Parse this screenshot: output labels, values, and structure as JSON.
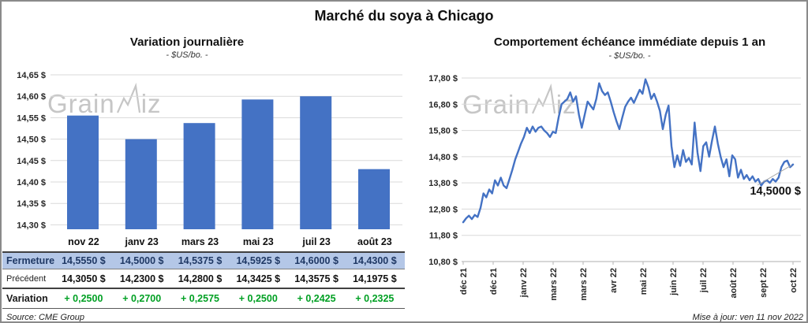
{
  "title": "Marché du soya à Chicago",
  "watermark": {
    "part1": "Grain",
    "part2": "iz"
  },
  "footer": {
    "source": "Source: CME Group",
    "updated": "Mise à jour: ven 11 nov 2022"
  },
  "colors": {
    "bar": "#4472c4",
    "line": "#4472c4",
    "close_row_bg": "#b4c7e7",
    "close_row_text": "#1f3864",
    "variation_green": "#00a023",
    "gridline": "#d9d9d9",
    "axis": "#bfbfbf",
    "watermark": "#c6c6c6",
    "annotation_leader": "#a6a6a6"
  },
  "chart_data": [
    {
      "type": "bar",
      "title": "Variation journalière",
      "subtitle": "- $US/bo. -",
      "categories": [
        "nov 22",
        "janv 23",
        "mars 23",
        "mai 23",
        "juil 23",
        "août 23"
      ],
      "values": [
        14.555,
        14.5,
        14.5375,
        14.5925,
        14.6,
        14.43
      ],
      "ylim": [
        14.2875,
        14.675
      ],
      "grid": true,
      "yticks": [
        {
          "v": 14.65,
          "label": "14,65 $"
        },
        {
          "v": 14.6,
          "label": "14,60 $"
        },
        {
          "v": 14.55,
          "label": "14,55 $"
        },
        {
          "v": 14.5,
          "label": "14,50 $"
        },
        {
          "v": 14.45,
          "label": "14,45 $"
        },
        {
          "v": 14.4,
          "label": "14,40 $"
        },
        {
          "v": 14.35,
          "label": "14,35 $"
        },
        {
          "v": 14.3,
          "label": "14,30 $"
        }
      ]
    },
    {
      "type": "line",
      "title": "Comportement échéance immédiate depuis 1 an",
      "subtitle": "- $US/bo. -",
      "x_tick_labels": [
        "déc 21",
        "déc 21",
        "janv 22",
        "mars 22",
        "mars 22",
        "avr 22",
        "mai 22",
        "juin 22",
        "juil 22",
        "août 22",
        "sept 22",
        "oct 22"
      ],
      "ylim": [
        10.8,
        17.95
      ],
      "grid": true,
      "yticks": [
        {
          "v": 17.8,
          "label": "17,80 $"
        },
        {
          "v": 16.8,
          "label": "16,80 $"
        },
        {
          "v": 15.8,
          "label": "15,80 $"
        },
        {
          "v": 14.8,
          "label": "14,80 $"
        },
        {
          "v": 13.8,
          "label": "13,80 $"
        },
        {
          "v": 12.8,
          "label": "12,80 $"
        },
        {
          "v": 11.8,
          "label": "11,80 $"
        },
        {
          "v": 10.8,
          "label": "10,80 $"
        }
      ],
      "values": [
        12.3,
        12.45,
        12.55,
        12.42,
        12.58,
        12.5,
        12.85,
        13.4,
        13.25,
        13.55,
        13.4,
        13.9,
        13.7,
        14.0,
        13.7,
        13.6,
        13.95,
        14.3,
        14.7,
        15.0,
        15.3,
        15.55,
        15.9,
        15.7,
        15.95,
        15.75,
        15.9,
        15.95,
        15.8,
        15.7,
        15.55,
        15.75,
        15.7,
        16.3,
        16.8,
        16.9,
        17.0,
        17.25,
        16.9,
        17.1,
        16.4,
        15.9,
        16.4,
        16.9,
        16.75,
        16.6,
        17.0,
        17.6,
        17.3,
        17.15,
        17.25,
        16.9,
        16.5,
        16.15,
        15.85,
        16.3,
        16.7,
        16.9,
        17.05,
        16.85,
        17.1,
        17.35,
        17.2,
        17.75,
        17.45,
        17.0,
        17.2,
        16.9,
        16.55,
        15.85,
        16.4,
        16.75,
        15.2,
        14.4,
        14.85,
        14.45,
        15.05,
        14.6,
        14.75,
        14.5,
        16.1,
        14.95,
        14.25,
        15.2,
        15.35,
        14.8,
        15.4,
        15.95,
        15.3,
        14.8,
        14.4,
        14.7,
        14.05,
        14.85,
        14.7,
        14.0,
        14.3,
        13.95,
        14.1,
        13.9,
        14.05,
        13.85,
        13.95,
        13.7,
        13.85,
        13.9,
        13.8,
        13.95,
        13.85,
        14.0,
        14.4,
        14.6,
        14.65,
        14.4,
        14.5
      ],
      "annotation": {
        "text": "14,5000 $",
        "value": 14.5
      }
    }
  ],
  "table": {
    "header": [
      "nov 22",
      "janv 23",
      "mars 23",
      "mai 23",
      "juil 23",
      "août 23"
    ],
    "rows": [
      {
        "key": "close",
        "label": "Fermeture",
        "values": [
          "14,5550 $",
          "14,5000 $",
          "14,5375 $",
          "14,5925 $",
          "14,6000 $",
          "14,4300 $"
        ]
      },
      {
        "key": "previous",
        "label": "Précédent",
        "values": [
          "14,3050 $",
          "14,2300 $",
          "14,2800 $",
          "14,3425 $",
          "14,3575 $",
          "14,1975 $"
        ]
      },
      {
        "key": "variation",
        "label": "Variation",
        "values": [
          "+ 0,2500",
          "+ 0,2700",
          "+ 0,2575",
          "+ 0,2500",
          "+ 0,2425",
          "+ 0,2325"
        ]
      }
    ]
  }
}
